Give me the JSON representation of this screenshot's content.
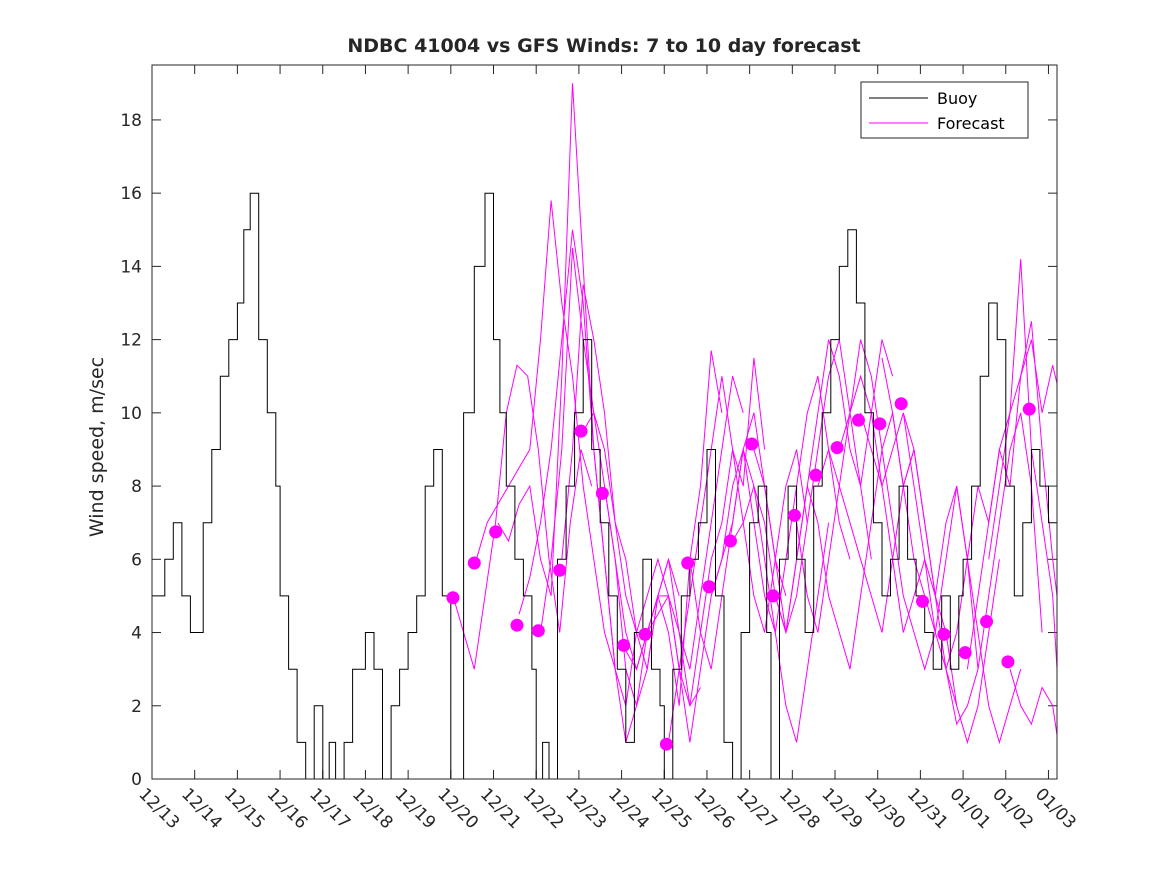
{
  "chart_data": {
    "type": "line",
    "title": "NDBC 41004 vs GFS Winds: 7 to 10 day forecast",
    "xlabel": "",
    "ylabel": "Wind speed, m/sec",
    "xlim": [
      0,
      21.2
    ],
    "ylim": [
      0,
      19.5
    ],
    "yticks": [
      0,
      2,
      4,
      6,
      8,
      10,
      12,
      14,
      16,
      18
    ],
    "ytick_labels": [
      "0",
      "2",
      "4",
      "6",
      "8",
      "10",
      "12",
      "14",
      "16",
      "18"
    ],
    "xtick_positions": [
      0,
      1,
      2,
      3,
      4,
      5,
      6,
      7,
      8,
      9,
      10,
      11,
      12,
      13,
      14,
      15,
      16,
      17,
      18,
      19,
      20,
      21
    ],
    "xtick_labels": [
      "12/13",
      "12/14",
      "12/15",
      "12/16",
      "12/17",
      "12/18",
      "12/19",
      "12/20",
      "12/21",
      "12/22",
      "12/23",
      "12/24",
      "12/25",
      "12/26",
      "12/27",
      "12/28",
      "12/29",
      "12/30",
      "12/31",
      "01/01",
      "01/02",
      "01/03"
    ],
    "legend": {
      "location": "top-right",
      "entries": [
        {
          "label": "Buoy",
          "color": "#000000"
        },
        {
          "label": "Forecast",
          "color": "#ff00ff"
        }
      ]
    },
    "series": [
      {
        "name": "Buoy",
        "color": "#000000",
        "x": [
          0,
          0.3,
          0.5,
          0.7,
          0.9,
          1.0,
          1.2,
          1.4,
          1.6,
          1.8,
          2.0,
          2.15,
          2.3,
          2.5,
          2.7,
          2.9,
          3.0,
          3.2,
          3.4,
          3.6,
          3.8,
          4.0,
          4.15,
          4.3,
          4.5,
          4.7,
          5.0,
          5.2,
          5.4,
          5.6,
          5.8,
          6.0,
          6.2,
          6.4,
          6.6,
          6.8,
          7.0,
          7.3,
          7.55,
          7.8,
          8.0,
          8.15,
          8.3,
          8.5,
          8.7,
          8.9,
          9.0,
          9.15,
          9.3,
          9.5,
          9.7,
          9.9,
          10.1,
          10.3,
          10.5,
          10.7,
          10.9,
          11.1,
          11.3,
          11.5,
          11.7,
          11.9,
          12.0,
          12.2,
          12.4,
          12.6,
          12.8,
          13.0,
          13.2,
          13.4,
          13.6,
          13.8,
          14.0,
          14.2,
          14.4,
          14.5,
          14.7,
          14.9,
          15.1,
          15.3,
          15.5,
          15.7,
          15.9,
          16.1,
          16.3,
          16.5,
          16.7,
          16.9,
          17.1,
          17.3,
          17.5,
          17.7,
          17.9,
          18.1,
          18.3,
          18.5,
          18.7,
          18.9,
          19.0,
          19.2,
          19.4,
          19.6,
          19.8,
          20.0,
          20.2,
          20.4,
          20.6,
          20.8,
          21.0,
          21.2
        ],
        "values": [
          5,
          6,
          7,
          5,
          4,
          4,
          7,
          9,
          11,
          12,
          13,
          15,
          16,
          12,
          10,
          8,
          5,
          3,
          1,
          0,
          2,
          0,
          1,
          0,
          1,
          3,
          4,
          3,
          0,
          2,
          3,
          4,
          5,
          8,
          9,
          5,
          0,
          10,
          14,
          16,
          12,
          10,
          8,
          6,
          5,
          3,
          0,
          1,
          0,
          6,
          8,
          10,
          12,
          9,
          7,
          5,
          3,
          1,
          4,
          6,
          3,
          2,
          0,
          3,
          5,
          6,
          7,
          9,
          5,
          1,
          0,
          4,
          7,
          8,
          4,
          0,
          6,
          8,
          6,
          4,
          8,
          10,
          12,
          14,
          15,
          13,
          10,
          7,
          5,
          6,
          8,
          6,
          5,
          4,
          3,
          5,
          3,
          5,
          6,
          8,
          11,
          13,
          12,
          8,
          5,
          7,
          9,
          8,
          7,
          9
        ]
      }
    ],
    "forecast_runs": [
      {
        "x": [
          7.05,
          7.3,
          7.55,
          7.8,
          8.05,
          8.3,
          8.55,
          8.8,
          9.05,
          9.3,
          9.55,
          9.8,
          10.05,
          10.3
        ],
        "values": [
          5,
          4,
          3,
          5,
          7,
          10,
          11.3,
          11,
          9,
          6,
          4,
          7,
          9,
          8
        ]
      },
      {
        "x": [
          7.6,
          7.85,
          8.1,
          8.35,
          8.6,
          8.85,
          9.1,
          9.35,
          9.6,
          9.85,
          10.1,
          10.35,
          10.6,
          10.85
        ],
        "values": [
          6,
          7,
          7.5,
          8,
          8.5,
          9,
          12,
          15.8,
          13,
          11,
          8,
          6,
          4,
          3
        ]
      },
      {
        "x": [
          8.1,
          8.35,
          8.6,
          8.85,
          9.1,
          9.35,
          9.6,
          9.85,
          10.1,
          10.35,
          10.6,
          10.85,
          11.1,
          11.35
        ],
        "values": [
          7,
          6.5,
          7.5,
          8,
          6,
          5,
          11,
          19,
          14,
          9,
          6,
          3,
          2,
          4
        ]
      },
      {
        "x": [
          8.6,
          8.85,
          9.1,
          9.35,
          9.6,
          9.85,
          10.1,
          10.35,
          10.6,
          10.85,
          11.1,
          11.35,
          11.6,
          11.85
        ],
        "values": [
          4.5,
          5.5,
          7,
          9,
          12,
          15,
          13,
          9,
          6,
          3,
          1,
          2,
          3,
          5
        ]
      },
      {
        "x": [
          9.1,
          9.35,
          9.6,
          9.85,
          10.1,
          10.35,
          10.6,
          10.85,
          11.1,
          11.35,
          11.6,
          11.85,
          12.1,
          12.35
        ],
        "values": [
          4,
          6,
          9,
          14.5,
          12,
          10,
          8,
          6,
          4,
          3,
          4,
          5,
          6,
          5
        ]
      },
      {
        "x": [
          9.6,
          9.85,
          10.1,
          10.35,
          10.6,
          10.85,
          11.1,
          11.35,
          11.6,
          11.85,
          12.1,
          12.35,
          12.6,
          12.85
        ],
        "values": [
          6,
          9,
          13.5,
          12,
          10,
          7,
          6,
          4,
          5,
          6,
          5,
          3,
          2,
          2.5
        ]
      },
      {
        "x": [
          10.1,
          10.35,
          10.6,
          10.85,
          11.1,
          11.35,
          11.6,
          11.85,
          12.1,
          12.35,
          12.6,
          12.85,
          13.1,
          13.35
        ],
        "values": [
          9.5,
          10,
          9,
          7,
          5,
          4,
          3,
          5,
          4,
          2,
          6,
          8,
          11.7,
          10
        ]
      },
      {
        "x": [
          10.6,
          10.85,
          11.1,
          11.35,
          11.6,
          11.85,
          12.1,
          12.35,
          12.6,
          12.85,
          13.1,
          13.35,
          13.6,
          13.85
        ],
        "values": [
          8,
          6,
          3,
          2,
          4,
          5,
          5,
          4,
          3,
          5,
          7,
          9,
          11,
          10
        ]
      },
      {
        "x": [
          11.1,
          11.35,
          11.6,
          11.85,
          12.1,
          12.35,
          12.6,
          12.85,
          13.1,
          13.35,
          13.6,
          13.85,
          14.1,
          14.35
        ],
        "values": [
          3.5,
          3,
          4,
          5,
          6,
          4,
          2,
          4,
          6,
          7,
          9,
          8,
          11.5,
          9
        ]
      },
      {
        "x": [
          11.6,
          11.85,
          12.1,
          12.35,
          12.6,
          12.85,
          13.1,
          13.35,
          13.6,
          13.85,
          14.1,
          14.35,
          14.6,
          14.85
        ],
        "values": [
          4,
          4.5,
          5,
          3,
          1,
          3,
          5,
          6,
          7,
          9,
          10,
          8,
          6,
          5
        ]
      },
      {
        "x": [
          12.1,
          12.35,
          12.6,
          12.85,
          13.1,
          13.35,
          13.6,
          13.85,
          14.1,
          14.35,
          14.6,
          14.85,
          15.1,
          15.35
        ],
        "values": [
          1,
          3,
          5,
          7,
          9,
          11,
          9,
          7,
          5,
          4,
          6,
          8,
          9,
          7
        ]
      },
      {
        "x": [
          12.6,
          12.85,
          13.1,
          13.35,
          13.6,
          13.85,
          14.1,
          14.35,
          14.6,
          14.85,
          15.1,
          15.35,
          15.6,
          15.85
        ],
        "values": [
          6,
          4,
          3,
          5,
          7,
          9,
          8,
          6,
          4,
          2,
          1,
          3,
          5,
          7
        ]
      },
      {
        "x": [
          13.1,
          13.35,
          13.6,
          13.85,
          14.1,
          14.35,
          14.6,
          14.85,
          15.1,
          15.35,
          15.6,
          15.85,
          16.1,
          16.35
        ],
        "values": [
          5,
          6,
          8,
          9,
          7,
          5,
          4,
          6,
          8,
          10,
          11,
          9,
          7,
          6
        ]
      },
      {
        "x": [
          13.6,
          13.85,
          14.1,
          14.35,
          14.6,
          14.85,
          15.1,
          15.35,
          15.6,
          15.85,
          16.1,
          16.35,
          16.6,
          16.85
        ],
        "values": [
          6.5,
          7,
          8,
          7,
          5,
          4,
          5,
          7,
          9,
          11,
          12,
          10,
          8,
          6
        ]
      },
      {
        "x": [
          14.1,
          14.35,
          14.6,
          14.85,
          15.1,
          15.35,
          15.6,
          15.85,
          16.1,
          16.35,
          16.6,
          16.85,
          17.1,
          17.35
        ],
        "values": [
          9,
          8,
          6,
          4,
          6,
          8,
          10,
          12,
          11,
          9,
          8,
          10,
          12,
          11
        ]
      },
      {
        "x": [
          14.6,
          14.85,
          15.1,
          15.35,
          15.6,
          15.85,
          16.1,
          16.35,
          16.6,
          16.85,
          17.1,
          17.35,
          17.6,
          17.85
        ],
        "values": [
          5,
          4,
          6,
          8,
          7,
          5,
          4,
          3,
          5,
          7,
          9,
          10,
          8,
          9
        ]
      },
      {
        "x": [
          15.1,
          15.35,
          15.6,
          15.85,
          16.1,
          16.35,
          16.6,
          16.85,
          17.1,
          17.35,
          17.6,
          17.85,
          18.1,
          18.35
        ],
        "values": [
          7,
          5,
          4,
          6,
          8,
          10,
          12,
          11,
          9,
          7,
          5,
          4,
          3,
          4
        ]
      },
      {
        "x": [
          15.6,
          15.85,
          16.1,
          16.35,
          16.6,
          16.85,
          17.1,
          17.35,
          17.6,
          17.85,
          18.1,
          18.35,
          18.6,
          18.85
        ],
        "values": [
          8,
          9,
          8,
          7,
          6,
          5,
          4,
          6,
          8,
          9,
          7,
          5,
          4,
          2
        ]
      },
      {
        "x": [
          16.1,
          16.35,
          16.6,
          16.85,
          17.1,
          17.35,
          17.6,
          17.85,
          18.1,
          18.35,
          18.6,
          18.85,
          19.1,
          19.35
        ],
        "values": [
          9,
          10,
          11,
          10,
          8,
          6,
          4,
          5,
          6,
          5,
          3,
          1.5,
          2,
          3
        ]
      },
      {
        "x": [
          16.6,
          16.85,
          17.1,
          17.35,
          17.6,
          17.85,
          18.1,
          18.35,
          18.6,
          18.85,
          19.1,
          19.35,
          19.6,
          19.85
        ],
        "values": [
          10,
          9,
          8,
          9,
          10,
          8,
          6,
          4,
          3,
          2,
          1,
          2,
          4,
          6
        ]
      },
      {
        "x": [
          17.1,
          17.35,
          17.6,
          17.85,
          18.1,
          18.35,
          18.6,
          18.85,
          19.1,
          19.35,
          19.6,
          19.85,
          20.1,
          20.35
        ],
        "values": [
          11.5,
          10,
          8,
          6,
          5,
          4,
          6,
          8,
          6,
          4,
          2,
          1,
          2,
          3
        ]
      },
      {
        "x": [
          17.6,
          17.85,
          18.1,
          18.35,
          18.6,
          18.85,
          19.1,
          19.35,
          19.6,
          19.85,
          20.1,
          20.35,
          20.6,
          20.85
        ],
        "values": [
          10,
          9,
          7,
          5,
          7,
          8,
          6,
          3,
          5,
          7,
          9,
          10,
          8,
          4
        ]
      },
      {
        "x": [
          18.6,
          18.85,
          19.1,
          19.35,
          19.6,
          19.85,
          20.1,
          20.35,
          20.6,
          20.85,
          21.1,
          21.2
        ],
        "values": [
          3,
          4,
          6,
          8,
          7,
          9,
          8,
          11,
          12.5,
          9,
          6,
          5
        ]
      },
      {
        "x": [
          19.1,
          19.35,
          19.6,
          19.85,
          20.1,
          20.35,
          20.6,
          20.85,
          21.1,
          21.2
        ],
        "values": [
          3,
          5,
          7,
          9,
          10,
          11,
          12,
          10,
          11.3,
          10.8
        ]
      },
      {
        "x": [
          19.6,
          19.85,
          20.1,
          20.35,
          20.6,
          20.85,
          21.1,
          21.2
        ],
        "values": [
          6,
          8,
          10,
          14.2,
          9,
          7,
          5,
          3
        ]
      },
      {
        "x": [
          20.1,
          20.35,
          20.6,
          20.85,
          21.1,
          21.2
        ],
        "values": [
          3,
          2,
          1.5,
          2.5,
          2,
          1.2
        ]
      }
    ],
    "forecast_markers": {
      "color": "#ff00ff",
      "points": [
        {
          "x": 7.05,
          "y": 4.95
        },
        {
          "x": 7.55,
          "y": 5.9
        },
        {
          "x": 8.05,
          "y": 6.75
        },
        {
          "x": 8.55,
          "y": 4.2
        },
        {
          "x": 9.05,
          "y": 4.05
        },
        {
          "x": 9.55,
          "y": 5.7
        },
        {
          "x": 10.05,
          "y": 9.5
        },
        {
          "x": 10.55,
          "y": 7.8
        },
        {
          "x": 11.05,
          "y": 3.65
        },
        {
          "x": 11.55,
          "y": 3.95
        },
        {
          "x": 12.05,
          "y": 0.95
        },
        {
          "x": 12.55,
          "y": 5.9
        },
        {
          "x": 13.05,
          "y": 5.25
        },
        {
          "x": 13.55,
          "y": 6.5
        },
        {
          "x": 14.05,
          "y": 9.15
        },
        {
          "x": 14.55,
          "y": 5.0
        },
        {
          "x": 15.05,
          "y": 7.2
        },
        {
          "x": 15.55,
          "y": 8.3
        },
        {
          "x": 16.05,
          "y": 9.05
        },
        {
          "x": 16.55,
          "y": 9.8
        },
        {
          "x": 17.05,
          "y": 9.7
        },
        {
          "x": 17.55,
          "y": 10.25
        },
        {
          "x": 18.05,
          "y": 4.85
        },
        {
          "x": 18.55,
          "y": 3.95
        },
        {
          "x": 19.05,
          "y": 3.45
        },
        {
          "x": 19.55,
          "y": 4.3
        },
        {
          "x": 20.05,
          "y": 3.2
        },
        {
          "x": 20.55,
          "y": 10.1
        }
      ]
    }
  }
}
